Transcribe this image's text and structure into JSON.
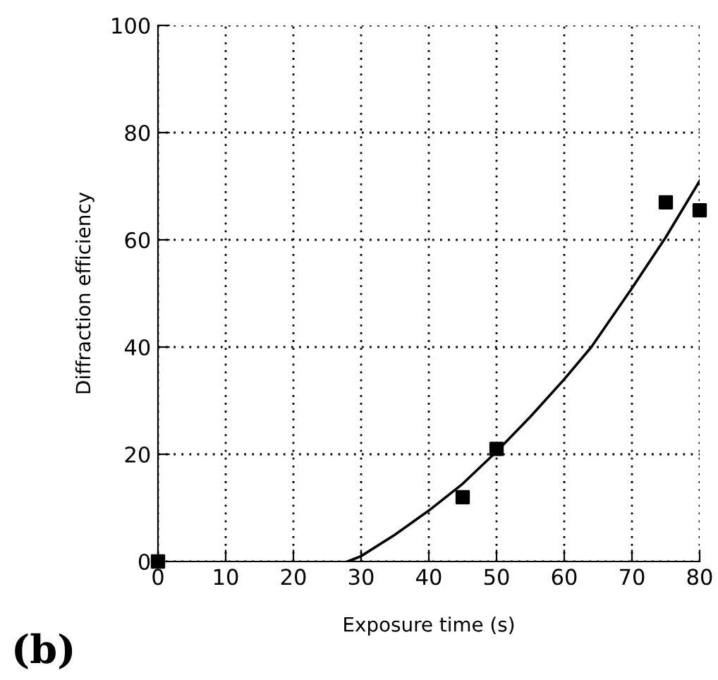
{
  "chart_data": {
    "type": "scatter",
    "xlabel": "Exposure time (s)",
    "ylabel": "Diffraction efficiency",
    "xlim": [
      0,
      80
    ],
    "ylim": [
      0,
      100
    ],
    "xticks": [
      0,
      10,
      20,
      30,
      40,
      50,
      60,
      70,
      80
    ],
    "yticks": [
      0,
      20,
      40,
      60,
      80,
      100
    ],
    "grid": true,
    "marker": "square",
    "annotations": [
      "(b)"
    ],
    "series": [
      {
        "color": "#000000",
        "x": [
          0,
          45,
          50,
          75,
          80
        ],
        "values": [
          0,
          12,
          21,
          67,
          65.5
        ]
      },
      {
        "type": "line",
        "color": "#000000",
        "line_style": "solid",
        "marker": "none",
        "x": [
          28,
          30,
          35,
          40,
          45,
          50,
          55,
          60,
          64,
          70,
          75,
          80
        ],
        "values": [
          0,
          1,
          5,
          9.5,
          14.5,
          20.5,
          27,
          34,
          40,
          51,
          60.5,
          71
        ]
      }
    ]
  }
}
